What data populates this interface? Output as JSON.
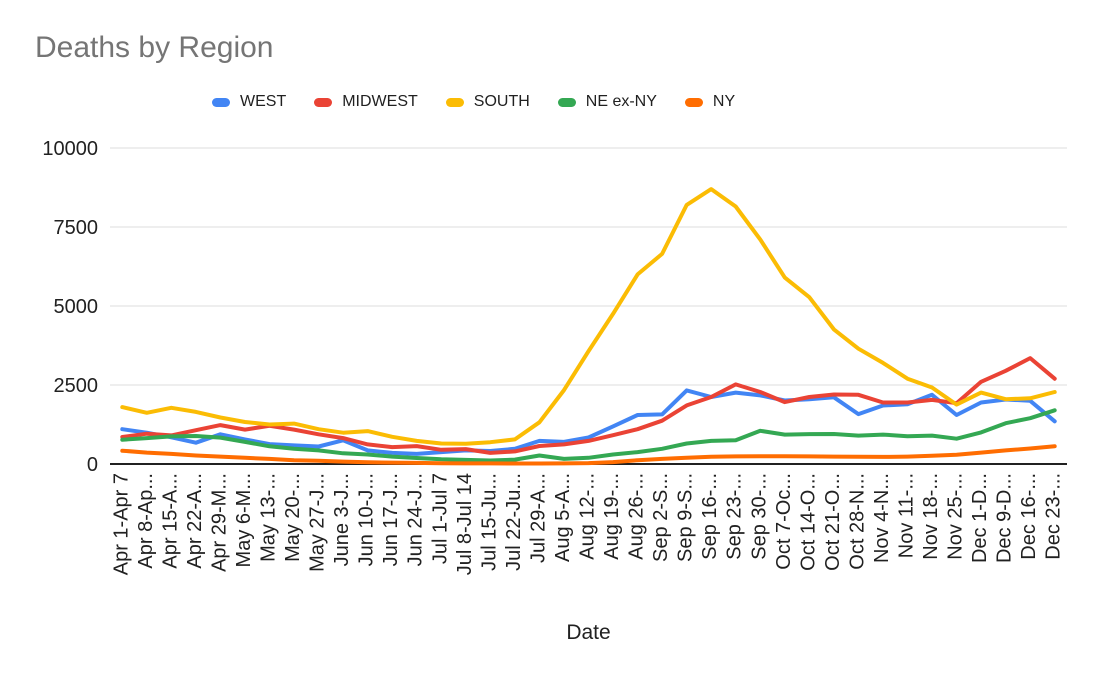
{
  "styles": {
    "background": "#FFFFFF",
    "title_color": "#757575",
    "text_color": "#212121",
    "gridline_color": "#DEDEDE",
    "axis_line_color": "#212121"
  },
  "chart_data": {
    "type": "line",
    "title": "Deaths by Region",
    "xlabel": "Date",
    "ylabel": "",
    "ylim": [
      0,
      10000
    ],
    "y_ticks": [
      0,
      2500,
      5000,
      7500,
      10000
    ],
    "grid": true,
    "legend_position": "top",
    "categories": [
      "Apr 1-Apr 7",
      "Apr 8-Ap...",
      "Apr 15-A...",
      "Apr 22-A...",
      "Apr 29-M...",
      "May 6-M...",
      "May 13-...",
      "May 20-...",
      "May 27-J...",
      "June 3-J...",
      "Jun 10-J...",
      "Jun 17-J...",
      "Jun 24-J...",
      "Jul 1-Jul 7",
      "Jul 8-Jul 14",
      "Jul 15-Ju...",
      "Jul 22-Ju...",
      "Jul 29-A...",
      "Aug 5-A...",
      "Aug 12-...",
      "Aug 19-...",
      "Aug 26-...",
      "Sep 2-S...",
      "Sep 9-S...",
      "Sep 16-...",
      "Sep 23-...",
      "Sep 30-...",
      "Oct 7-Oc...",
      "Oct 14-O...",
      "Oct 21-O...",
      "Oct 28-N...",
      "Nov 4-N...",
      "Nov 11-...",
      "Nov 18-...",
      "Nov 25-...",
      "Dec 1-D...",
      "Dec 9-D...",
      "Dec 16-...",
      "Dec 23-..."
    ],
    "series": [
      {
        "name": "WEST",
        "color": "#4285F4",
        "values": [
          1100,
          990,
          845,
          675,
          940,
          780,
          630,
          590,
          555,
          750,
          430,
          350,
          320,
          375,
          430,
          410,
          480,
          730,
          700,
          840,
          1190,
          1550,
          1570,
          2330,
          2120,
          2260,
          2170,
          2010,
          2050,
          2110,
          1580,
          1850,
          1890,
          2190,
          1550,
          1945,
          2040,
          2000,
          1350
        ]
      },
      {
        "name": "MIDWEST",
        "color": "#EA4335",
        "values": [
          855,
          960,
          905,
          1070,
          1230,
          1090,
          1210,
          1090,
          940,
          820,
          620,
          535,
          565,
          450,
          470,
          350,
          400,
          570,
          620,
          730,
          910,
          1100,
          1370,
          1855,
          2120,
          2520,
          2280,
          1960,
          2120,
          2200,
          2190,
          1945,
          1945,
          2030,
          1925,
          2600,
          2950,
          3350,
          2700
        ]
      },
      {
        "name": "SOUTH",
        "color": "#FBBC04",
        "values": [
          1800,
          1620,
          1780,
          1650,
          1470,
          1330,
          1250,
          1280,
          1100,
          990,
          1040,
          860,
          730,
          650,
          640,
          690,
          780,
          1320,
          2340,
          3570,
          4750,
          6000,
          6650,
          8200,
          8700,
          8150,
          7100,
          5900,
          5280,
          4260,
          3650,
          3200,
          2700,
          2420,
          1880,
          2260,
          2050,
          2080,
          2280
        ]
      },
      {
        "name": "NE ex-NY",
        "color": "#34A853",
        "values": [
          770,
          820,
          875,
          885,
          835,
          700,
          560,
          480,
          430,
          340,
          300,
          235,
          190,
          150,
          130,
          110,
          140,
          270,
          160,
          195,
          300,
          375,
          480,
          650,
          730,
          750,
          1050,
          930,
          945,
          950,
          900,
          930,
          880,
          900,
          800,
          1000,
          1290,
          1450,
          1700
        ]
      },
      {
        "name": "NY",
        "color": "#FF6D01",
        "values": [
          420,
          360,
          320,
          270,
          235,
          195,
          160,
          120,
          100,
          75,
          55,
          45,
          35,
          25,
          20,
          20,
          15,
          15,
          20,
          30,
          60,
          120,
          160,
          200,
          230,
          240,
          245,
          245,
          240,
          235,
          230,
          225,
          235,
          260,
          290,
          360,
          430,
          490,
          560
        ]
      }
    ]
  }
}
